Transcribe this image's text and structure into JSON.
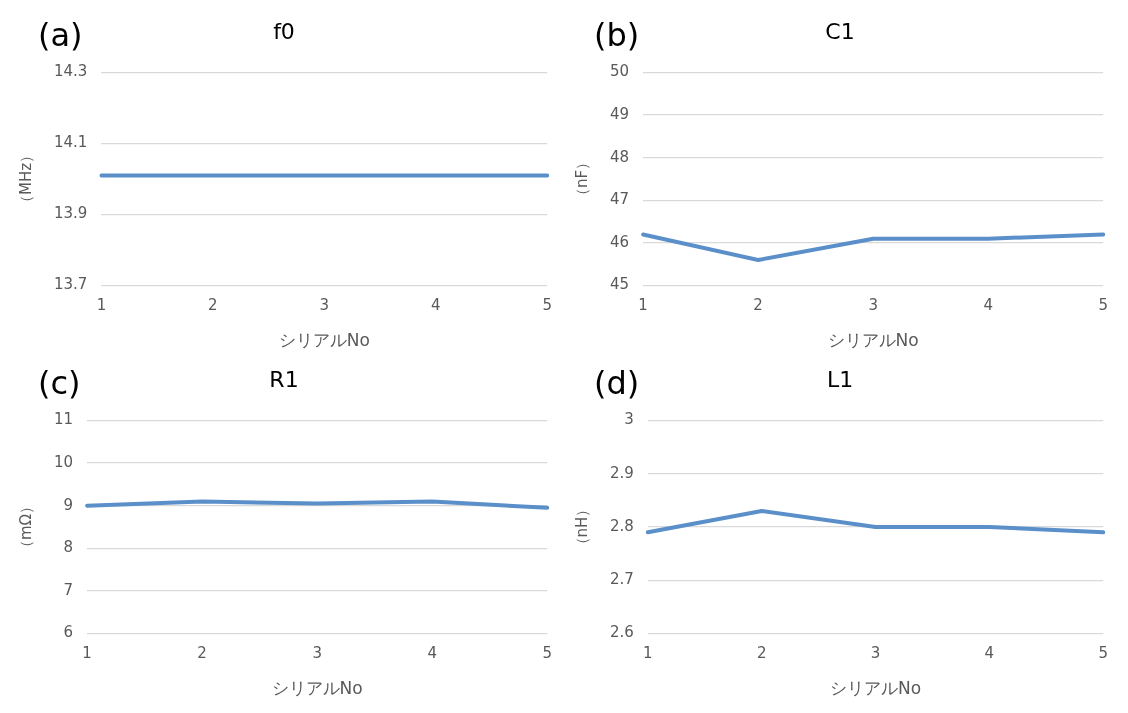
{
  "chart_data": [
    {
      "type": "line",
      "title": "f0",
      "xlabel": "シリアルNo",
      "ylabel": "（MHz）",
      "annotations": [
        "(a)"
      ],
      "categories": [
        "1",
        "2",
        "3",
        "4",
        "5"
      ],
      "values": [
        14.01,
        14.01,
        14.01,
        14.01,
        14.01
      ],
      "color": "#5b8fc9",
      "ylim": [
        13.7,
        14.3
      ],
      "yticks": [
        13.7,
        13.9,
        14.1,
        14.3
      ],
      "grid": "y",
      "marker": "none"
    },
    {
      "type": "line",
      "title": "C1",
      "xlabel": "シリアルNo",
      "ylabel": "（nF）",
      "annotations": [
        "(b)"
      ],
      "categories": [
        "1",
        "2",
        "3",
        "4",
        "5"
      ],
      "values": [
        46.2,
        45.6,
        46.1,
        46.1,
        46.2
      ],
      "color": "#5b8fc9",
      "ylim": [
        45,
        50
      ],
      "yticks": [
        45,
        46,
        47,
        48,
        49,
        50
      ],
      "grid": "y",
      "marker": "none"
    },
    {
      "type": "line",
      "title": "R1",
      "xlabel": "シリアルNo",
      "ylabel": "（mΩ）",
      "annotations": [
        "(c)"
      ],
      "categories": [
        "1",
        "2",
        "3",
        "4",
        "5"
      ],
      "values": [
        9.0,
        9.1,
        9.05,
        9.1,
        8.95
      ],
      "color": "#5b8fc9",
      "ylim": [
        6,
        11
      ],
      "yticks": [
        6,
        7,
        8,
        9,
        10,
        11
      ],
      "grid": "y",
      "marker": "none"
    },
    {
      "type": "line",
      "title": "L1",
      "xlabel": "シリアルNo",
      "ylabel": "（nH）",
      "annotations": [
        "(d)"
      ],
      "categories": [
        "1",
        "2",
        "3",
        "4",
        "5"
      ],
      "values": [
        2.79,
        2.83,
        2.8,
        2.8,
        2.79
      ],
      "color": "#5b8fc9",
      "ylim": [
        2.6,
        3
      ],
      "yticks": [
        2.6,
        2.7,
        2.8,
        2.9,
        3
      ],
      "grid": "y",
      "marker": "none"
    }
  ]
}
